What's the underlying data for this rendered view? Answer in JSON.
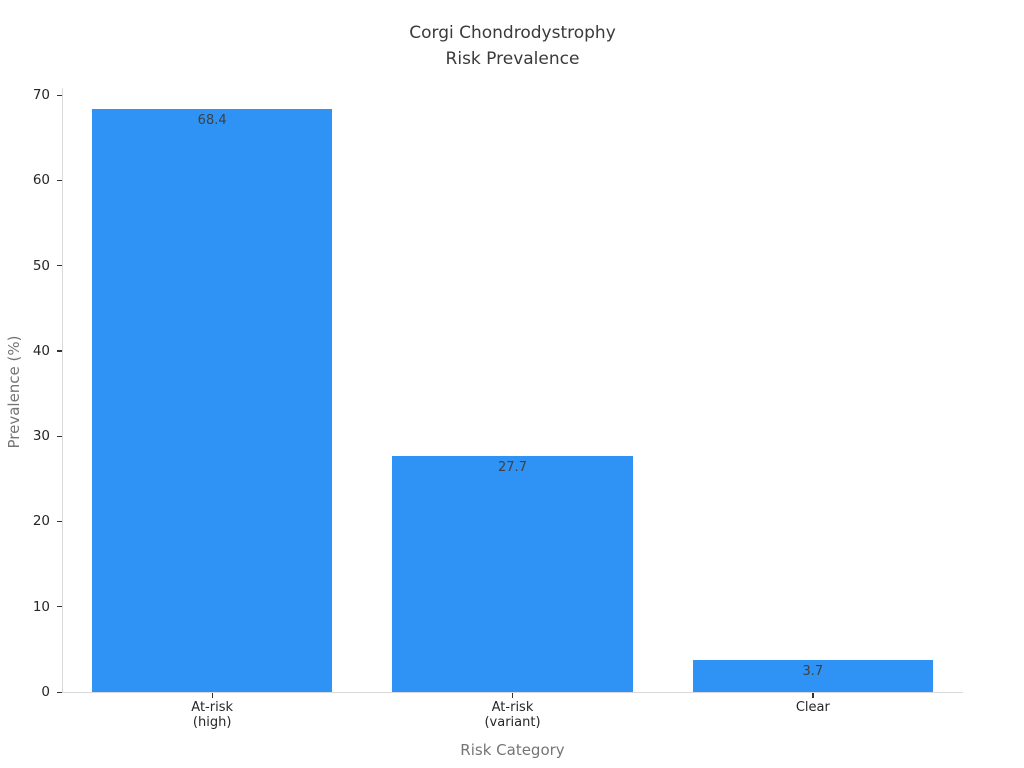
{
  "chart_data": {
    "type": "bar",
    "title": "Corgi Chondrodystrophy\nRisk Prevalence",
    "xlabel": "Risk Category",
    "ylabel": "Prevalence (%)",
    "categories": [
      "At-risk\n(high)",
      "At-risk\n(variant)",
      "Clear"
    ],
    "values": [
      68.4,
      27.7,
      3.7
    ],
    "value_labels": [
      "68.4",
      "27.7",
      "3.7"
    ],
    "ylim": [
      0,
      70
    ],
    "yticks": [
      0,
      10,
      20,
      30,
      40,
      50,
      60,
      70
    ],
    "grid": false,
    "legend": false,
    "value_label_position": "inside-top",
    "bar_color": "#2E93F5"
  },
  "colors": {
    "background": "#ffffff",
    "bar": "#2E93F5",
    "spine": "#d9d9d9",
    "tick_mark": "#333333",
    "tick_label": "#262626",
    "title": "#3a3a3a",
    "axis_label": "#757575",
    "value_label": "#404040"
  }
}
